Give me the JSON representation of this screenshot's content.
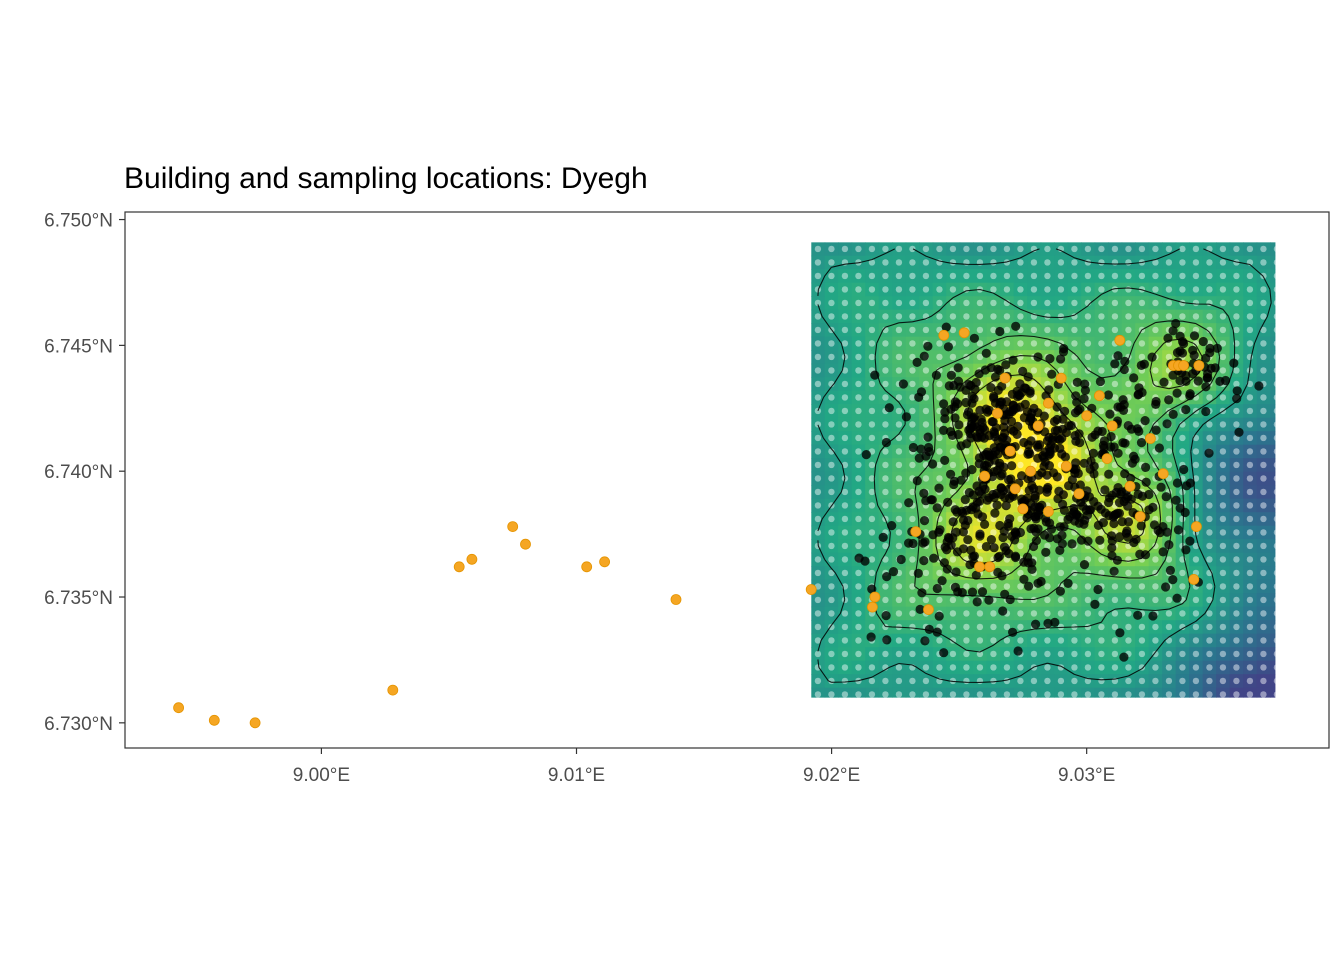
{
  "chart_data": {
    "type": "scatter",
    "title": "Building and sampling locations: Dyegh",
    "xlabel": "",
    "ylabel": "",
    "xlim": [
      8.9923,
      9.0395
    ],
    "ylim": [
      6.729,
      6.7503
    ],
    "x_ticks": [
      9.0,
      9.01,
      9.02,
      9.03
    ],
    "x_tick_labels": [
      "9.00°E",
      "9.01°E",
      "9.02°E",
      "9.03°E"
    ],
    "y_ticks": [
      6.73,
      6.735,
      6.74,
      6.745,
      6.75
    ],
    "y_tick_labels": [
      "6.730°N",
      "6.735°N",
      "6.740°N",
      "6.745°N",
      "6.750°N"
    ],
    "grid": false,
    "legend": "none",
    "raster": {
      "xmin": 9.0192,
      "xmax": 9.0374,
      "ymin": 6.731,
      "ymax": 6.7491,
      "palette": [
        "#414487",
        "#2a788e",
        "#22a884",
        "#7ad151",
        "#fde725"
      ],
      "hotspots": [
        {
          "x": 9.0282,
          "y": 6.7405,
          "strength": 1.0
        },
        {
          "x": 9.032,
          "y": 6.7383,
          "strength": 0.8
        },
        {
          "x": 9.0258,
          "y": 6.7373,
          "strength": 0.75
        },
        {
          "x": 9.0268,
          "y": 6.7428,
          "strength": 0.7
        },
        {
          "x": 9.0337,
          "y": 6.744,
          "strength": 0.6
        }
      ],
      "cold_spots": [
        {
          "x": 9.0368,
          "y": 6.7313,
          "strength": 1.0
        },
        {
          "x": 9.0362,
          "y": 6.7395,
          "strength": 0.8
        }
      ]
    },
    "series": [
      {
        "name": "",
        "color": "#f5a623",
        "x": [
          8.9944,
          8.9958,
          8.9974,
          9.0028,
          9.0054,
          9.0059,
          9.0075,
          9.008,
          9.0104,
          9.0111,
          9.0139,
          9.0192,
          9.0217,
          9.0216,
          9.0238,
          9.0233,
          9.0244,
          9.0252,
          9.026,
          9.0262,
          9.0268,
          9.0265,
          9.0272,
          9.0278,
          9.0281,
          9.0285,
          9.0292,
          9.0297,
          9.03,
          9.0305,
          9.031,
          9.0313,
          9.0317,
          9.0321,
          9.0325,
          9.033,
          9.0334,
          9.0336,
          9.0338,
          9.0344,
          9.0343,
          9.0342,
          9.0285,
          9.0275,
          9.0258,
          9.029,
          9.0308,
          9.027
        ],
        "y": [
          6.7306,
          6.7301,
          6.73,
          6.7313,
          6.7362,
          6.7365,
          6.7378,
          6.7371,
          6.7362,
          6.7364,
          6.7349,
          6.7353,
          6.735,
          6.7346,
          6.7345,
          6.7376,
          6.7454,
          6.7455,
          6.7398,
          6.7362,
          6.7437,
          6.7423,
          6.7393,
          6.74,
          6.7418,
          6.7427,
          6.7402,
          6.7391,
          6.7422,
          6.743,
          6.7418,
          6.7452,
          6.7394,
          6.7382,
          6.7413,
          6.7399,
          6.7442,
          6.7442,
          6.7442,
          6.7442,
          6.7378,
          6.7357,
          6.7384,
          6.7385,
          6.7362,
          6.7437,
          6.7405,
          6.7408
        ]
      }
    ]
  }
}
